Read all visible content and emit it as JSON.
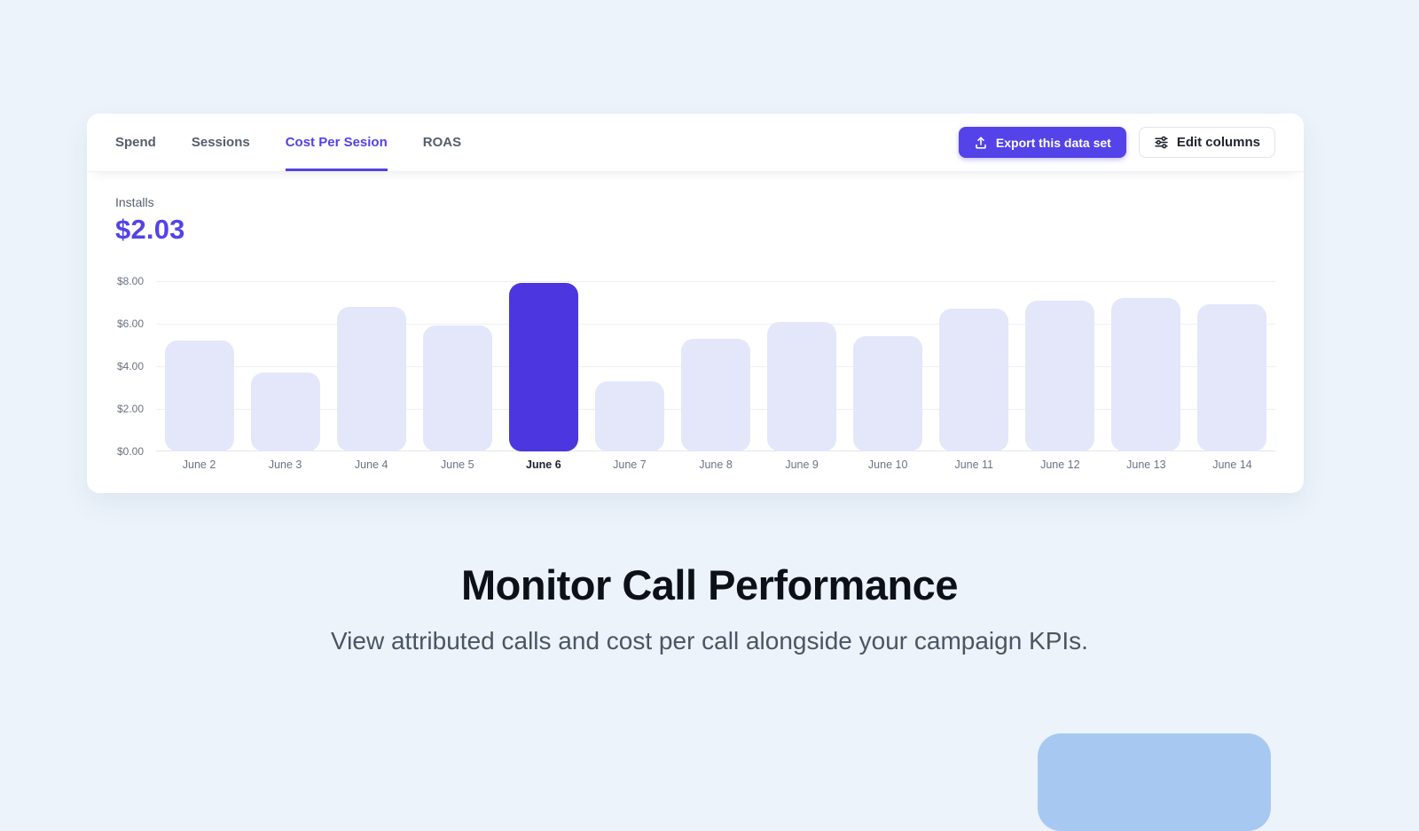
{
  "theme": {
    "background": "#ecf3fb",
    "accent": "#5343e8",
    "bar_color": "#e4e7f9",
    "bar_highlight_color": "#4b36e0",
    "decorative_shape_color": "#a7c9f1"
  },
  "tabs": [
    {
      "label": "Spend",
      "active": false
    },
    {
      "label": "Sessions",
      "active": false
    },
    {
      "label": "Cost Per Sesion",
      "active": true
    },
    {
      "label": "ROAS",
      "active": false
    }
  ],
  "toolbar": {
    "export_label": "Export this data set",
    "edit_columns_label": "Edit columns"
  },
  "kpi": {
    "label": "Installs",
    "value": "$2.03"
  },
  "chart_data": {
    "type": "bar",
    "categories": [
      "June 2",
      "June 3",
      "June 4",
      "June 5",
      "June 6",
      "June 7",
      "June 8",
      "June 9",
      "June 10",
      "June 11",
      "June 12",
      "June 13",
      "June 14"
    ],
    "values": [
      5.2,
      3.7,
      6.8,
      5.9,
      7.9,
      3.3,
      5.3,
      6.1,
      5.4,
      6.7,
      7.1,
      7.2,
      6.9
    ],
    "highlighted_category": "June 6",
    "ylabel_ticks": [
      "$8.00",
      "$6.00",
      "$4.00",
      "$2.00",
      "$0.00"
    ],
    "ylim": [
      0,
      8
    ],
    "grid": true,
    "title": "",
    "xlabel": "",
    "ylabel": ""
  },
  "hero": {
    "title": "Monitor Call Performance",
    "subtitle": "View attributed calls and cost per call alongside your campaign KPIs."
  }
}
